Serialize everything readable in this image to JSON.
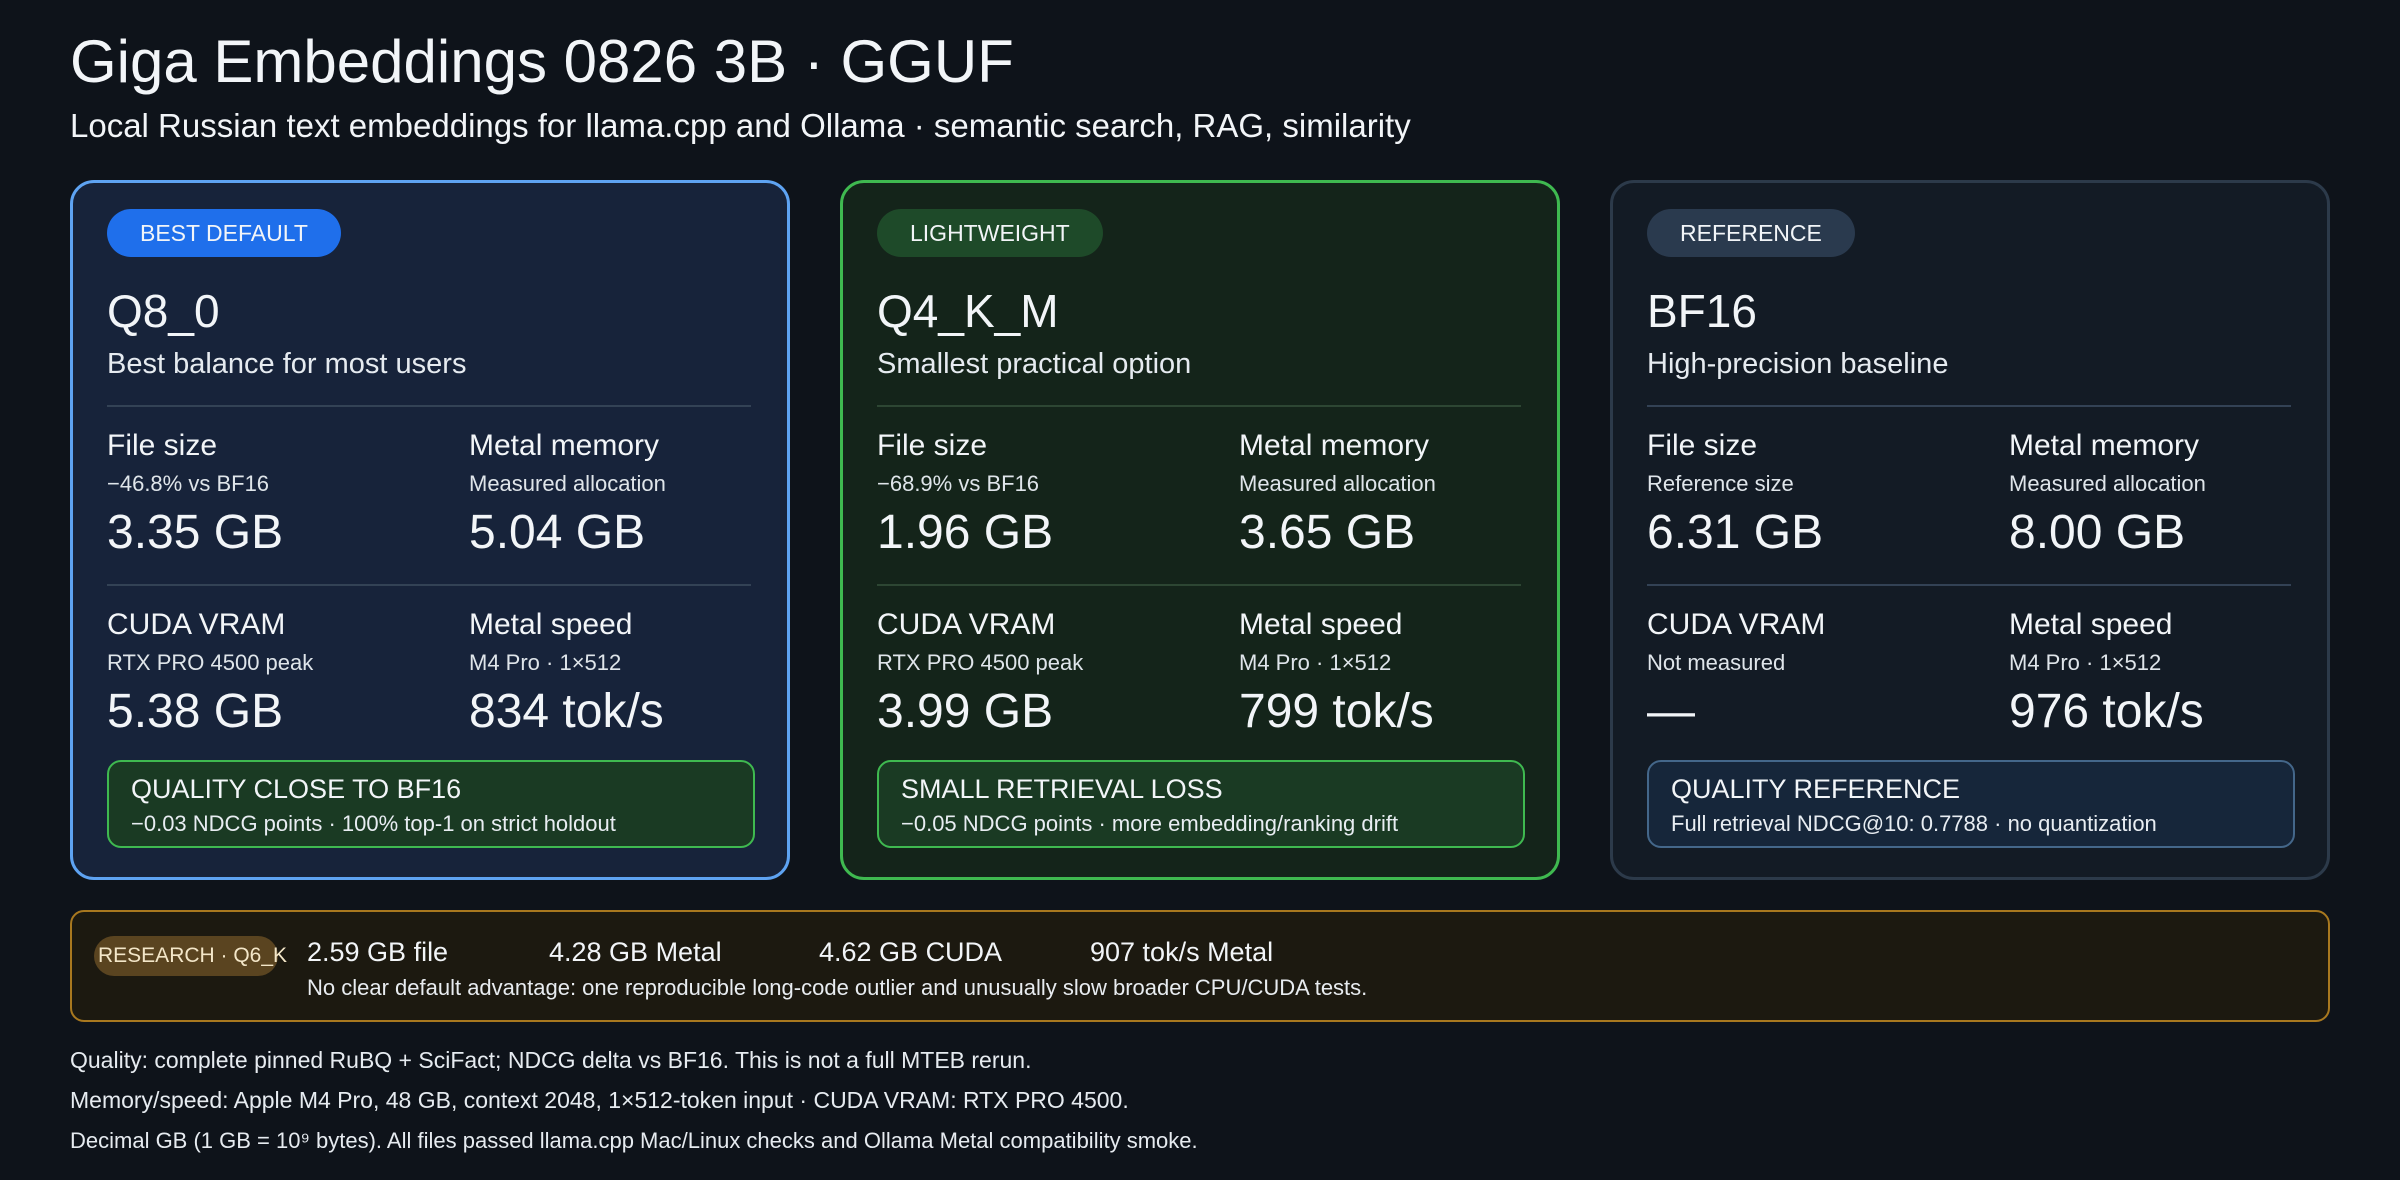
{
  "header": {
    "title": "Giga Embeddings 0826 3B · GGUF",
    "subtitle": "Local Russian text embeddings for llama.cpp and Ollama · semantic search, RAG, similarity"
  },
  "cards": [
    {
      "badge": "BEST DEFAULT",
      "name": "Q8_0",
      "description": "Best balance for most users",
      "metrics": [
        {
          "label": "File size",
          "sub": "−46.8% vs BF16",
          "value": "3.35 GB"
        },
        {
          "label": "Metal memory",
          "sub": "Measured allocation",
          "value": "5.04 GB"
        },
        {
          "label": "CUDA VRAM",
          "sub": "RTX PRO 4500 peak",
          "value": "5.38 GB"
        },
        {
          "label": "Metal speed",
          "sub": "M4 Pro · 1×512",
          "value": "834 tok/s"
        }
      ],
      "note": {
        "title": "QUALITY CLOSE TO BF16",
        "text": "−0.03 NDCG points · 100% top-1 on strict holdout"
      }
    },
    {
      "badge": "LIGHTWEIGHT",
      "name": "Q4_K_M",
      "description": "Smallest practical option",
      "metrics": [
        {
          "label": "File size",
          "sub": "−68.9% vs BF16",
          "value": "1.96 GB"
        },
        {
          "label": "Metal memory",
          "sub": "Measured allocation",
          "value": "3.65 GB"
        },
        {
          "label": "CUDA VRAM",
          "sub": "RTX PRO 4500 peak",
          "value": "3.99 GB"
        },
        {
          "label": "Metal speed",
          "sub": "M4 Pro · 1×512",
          "value": "799 tok/s"
        }
      ],
      "note": {
        "title": "SMALL RETRIEVAL LOSS",
        "text": "−0.05 NDCG points · more embedding/ranking drift"
      }
    },
    {
      "badge": "REFERENCE",
      "name": "BF16",
      "description": "High-precision baseline",
      "metrics": [
        {
          "label": "File size",
          "sub": "Reference size",
          "value": "6.31 GB"
        },
        {
          "label": "Metal memory",
          "sub": "Measured allocation",
          "value": "8.00 GB"
        },
        {
          "label": "CUDA VRAM",
          "sub": "Not measured",
          "value": "—"
        },
        {
          "label": "Metal speed",
          "sub": "M4 Pro · 1×512",
          "value": "976 tok/s"
        }
      ],
      "note": {
        "title": "QUALITY REFERENCE",
        "text": "Full retrieval NDCG@10: 0.7788 · no quantization"
      }
    }
  ],
  "research": {
    "badge": "RESEARCH · Q6_K",
    "stats": [
      "2.59 GB file",
      "4.28 GB Metal",
      "4.62 GB CUDA",
      "907 tok/s Metal"
    ],
    "note": "No clear default advantage: one reproducible long-code outlier and unusually slow broader CPU/CUDA tests."
  },
  "footer": [
    "Quality: complete pinned RuBQ + SciFact; NDCG delta vs BF16. This is not a full MTEB rerun.",
    "Memory/speed: Apple M4 Pro, 48 GB, context 2048, 1×512-token input · CUDA VRAM: RTX PRO 4500.",
    "Decimal GB (1 GB = 10⁹ bytes). All files passed llama.cpp Mac/Linux checks and Ollama Metal compatibility smoke."
  ]
}
